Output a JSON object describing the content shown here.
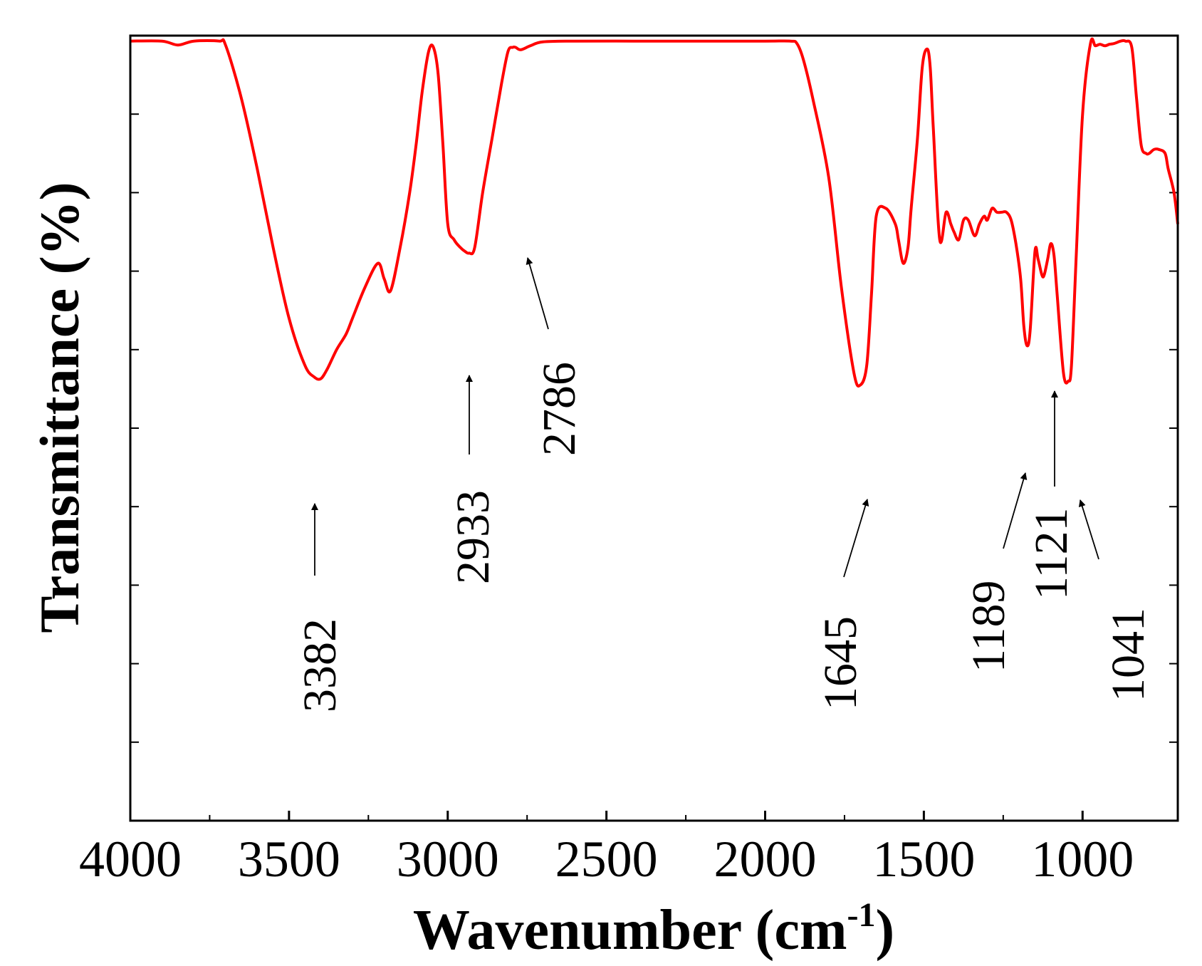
{
  "chart_data": {
    "type": "line",
    "title": "",
    "xlabel": "Wavenumber (cm",
    "xlabel_sup": "-1",
    "xlabel_tail": ")",
    "ylabel": "Transmittance (%)",
    "xlim": [
      4000,
      700
    ],
    "ylim": [
      0,
      100
    ],
    "x_reversed": true,
    "x_ticks": [
      4000,
      3500,
      3000,
      2500,
      2000,
      1500,
      1000
    ],
    "y_tick_labels_shown": false,
    "grid": false,
    "legend": "none",
    "line_color": "#ff0000",
    "series": [
      {
        "x": [
          4000,
          3900,
          3850,
          3800,
          3720,
          3700,
          3650,
          3600,
          3550,
          3500,
          3450,
          3420,
          3400,
          3380,
          3350,
          3320,
          3300,
          3260,
          3220,
          3200,
          3180,
          3150,
          3120,
          3100,
          3080,
          3060,
          3045,
          3030,
          3015,
          3000,
          2980,
          2960,
          2945,
          2933,
          2915,
          2890,
          2860,
          2830,
          2810,
          2795,
          2786,
          2770,
          2740,
          2700,
          2600,
          2400,
          2200,
          2000,
          1920,
          1900,
          1880,
          1850,
          1800,
          1760,
          1720,
          1700,
          1680,
          1665,
          1650,
          1620,
          1590,
          1580,
          1565,
          1550,
          1540,
          1520,
          1505,
          1490,
          1480,
          1470,
          1450,
          1430,
          1415,
          1405,
          1390,
          1375,
          1360,
          1340,
          1325,
          1310,
          1300,
          1285,
          1270,
          1255,
          1240,
          1225,
          1210,
          1195,
          1185,
          1175,
          1165,
          1150,
          1140,
          1128,
          1121,
          1110,
          1100,
          1090,
          1080,
          1060,
          1045,
          1035,
          1020,
          1000,
          975,
          960,
          945,
          930,
          915,
          900,
          880,
          865,
          845,
          830,
          815,
          800,
          790,
          775,
          760,
          740,
          730,
          712,
          700
        ],
        "y": [
          99.3,
          99.3,
          98.8,
          99.3,
          99.3,
          98.8,
          92,
          83,
          73,
          64,
          58,
          56.5,
          56.3,
          57.5,
          60,
          62,
          64,
          68,
          71,
          69,
          67.5,
          73,
          80,
          86,
          93,
          98,
          98.5,
          95,
          86,
          76,
          74,
          73,
          72.5,
          72.3,
          73,
          80,
          87,
          94,
          98,
          98.5,
          98.5,
          98.2,
          98.7,
          99.2,
          99.3,
          99.3,
          99.3,
          99.3,
          99.3,
          99,
          97,
          92,
          82,
          68,
          57,
          55.5,
          58,
          67,
          77,
          78,
          76,
          74,
          71,
          73,
          78,
          87,
          96,
          98.3,
          96,
          88,
          74,
          77.5,
          76,
          75,
          74,
          76.5,
          76.5,
          74.5,
          76,
          77,
          76.5,
          78,
          77.5,
          77.5,
          77.5,
          76.5,
          73.5,
          69,
          63,
          60.5,
          62.5,
          72.5,
          71.5,
          69.5,
          69.5,
          71.5,
          73.5,
          72,
          67,
          57,
          56,
          58,
          72,
          90,
          99,
          98.7,
          98.9,
          98.7,
          98.9,
          99,
          99.3,
          99.3,
          98.5,
          92,
          86,
          85,
          85,
          85.5,
          85.5,
          85,
          83,
          80,
          76
        ]
      }
    ],
    "annotations": [
      {
        "text": "3382",
        "x": 3382
      },
      {
        "text": "2933",
        "x": 2933
      },
      {
        "text": "2786",
        "x": 2786
      },
      {
        "text": "1645",
        "x": 1645
      },
      {
        "text": "1189",
        "x": 1189
      },
      {
        "text": "1121",
        "x": 1121
      },
      {
        "text": "1041",
        "x": 1041
      }
    ]
  }
}
